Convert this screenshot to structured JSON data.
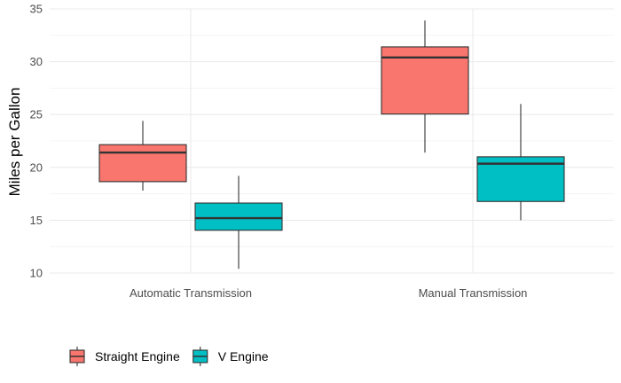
{
  "chart_data": {
    "type": "boxplot",
    "title": "",
    "xlabel": "",
    "ylabel": "Miles per Gallon",
    "ylim": [
      10,
      35
    ],
    "yticks": [
      10,
      15,
      20,
      25,
      30,
      35
    ],
    "categories": [
      "Automatic Transmission",
      "Manual Transmission"
    ],
    "series": [
      {
        "name": "Straight Engine",
        "color": "#F8766D",
        "boxes": [
          {
            "min": 17.8,
            "q1": 18.65,
            "median": 21.4,
            "q3": 22.15,
            "max": 24.4
          },
          {
            "min": 21.4,
            "q1": 25.05,
            "median": 30.4,
            "q3": 31.4,
            "max": 33.9
          }
        ]
      },
      {
        "name": "V Engine",
        "color": "#00BFC4",
        "boxes": [
          {
            "min": 10.4,
            "q1": 14.05,
            "median": 15.2,
            "q3": 16.625,
            "max": 19.2
          },
          {
            "min": 15.0,
            "q1": 16.775,
            "median": 20.35,
            "q3": 21.0,
            "max": 26.0
          }
        ]
      }
    ],
    "grid": true,
    "legend_position": "bottom-left"
  }
}
